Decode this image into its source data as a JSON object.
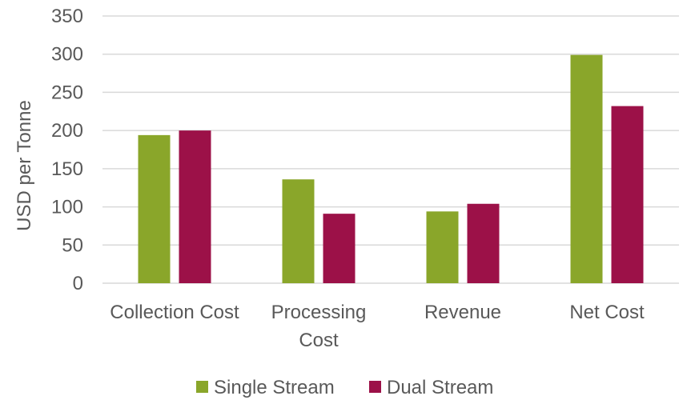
{
  "chart_data": {
    "type": "bar",
    "title": "",
    "xlabel": "",
    "ylabel": "USD per Tonne",
    "ylim": [
      0,
      350
    ],
    "yticks": [
      0,
      50,
      100,
      150,
      200,
      250,
      300,
      350
    ],
    "grid": true,
    "legend_position": "bottom",
    "categories": [
      [
        "Collection Cost"
      ],
      [
        "Processing",
        "Cost"
      ],
      [
        "Revenue"
      ],
      [
        "Net Cost"
      ]
    ],
    "series": [
      {
        "name": "Single Stream",
        "color": "#8aa62a",
        "values": [
          194,
          136,
          94,
          299
        ]
      },
      {
        "name": "Dual Stream",
        "color": "#9c1148",
        "values": [
          200,
          91,
          104,
          232
        ]
      }
    ]
  }
}
